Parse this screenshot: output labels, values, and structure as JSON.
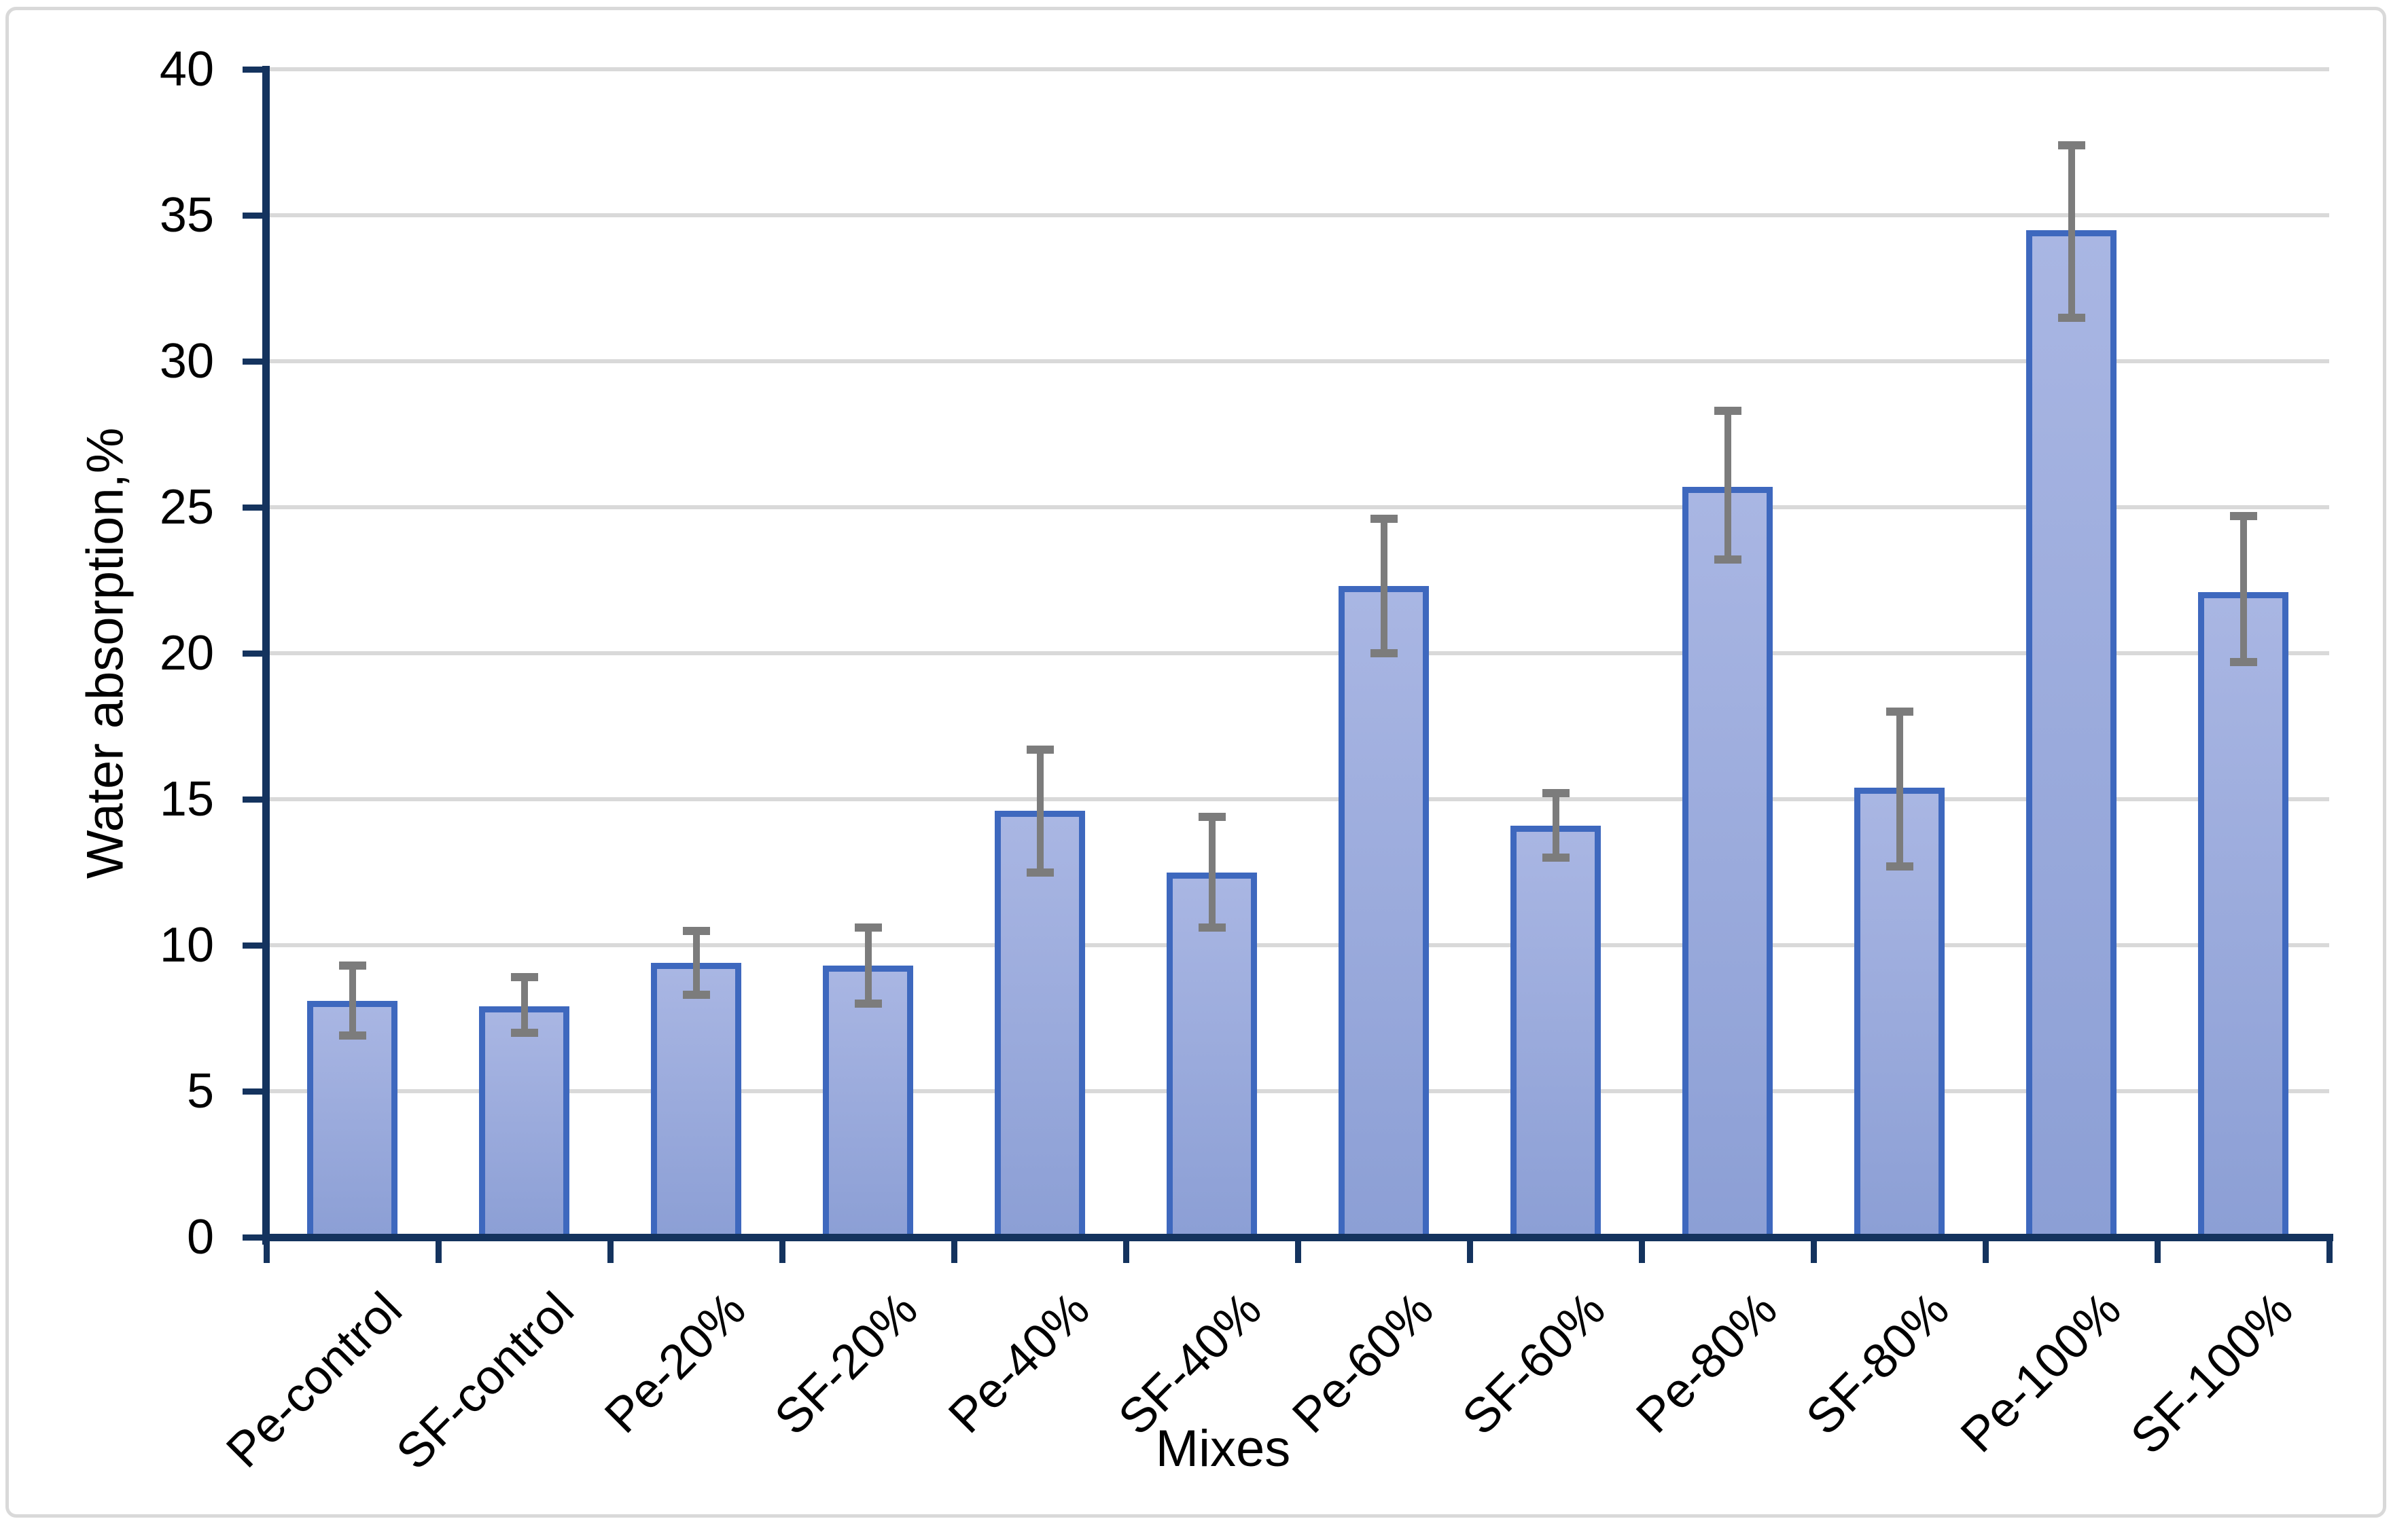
{
  "chart_data": {
    "type": "bar",
    "title": "",
    "xlabel": "Mixes",
    "ylabel": "Water absorption,%",
    "categories": [
      "Pe-control",
      "SF-control",
      "Pe-20%",
      "SF-20%",
      "Pe-40%",
      "SF-40%",
      "Pe-60%",
      "SF-60%",
      "Pe-80%",
      "SF-80%",
      "Pe-100%",
      "SF-100%"
    ],
    "values": [
      8.1,
      7.9,
      9.4,
      9.3,
      14.6,
      12.5,
      22.3,
      14.1,
      25.7,
      15.4,
      34.5,
      22.1
    ],
    "error_upper": [
      9.3,
      8.9,
      10.5,
      10.6,
      16.7,
      14.4,
      24.6,
      15.2,
      28.3,
      18.0,
      37.4,
      24.7
    ],
    "error_lower": [
      6.9,
      7.0,
      8.3,
      8.0,
      12.5,
      10.6,
      20.0,
      13.0,
      23.2,
      12.7,
      31.5,
      19.7
    ],
    "ylim": [
      0,
      40
    ],
    "yticks": [
      0,
      5,
      10,
      15,
      20,
      25,
      30,
      35,
      40
    ],
    "grid": "horizontal-major",
    "legend_position": "none"
  },
  "colors": {
    "bar_fill_top": "#a9b6e3",
    "bar_fill_bottom": "#8c9fd5",
    "bar_border": "#3e68be",
    "error_bar": "#7c7c7c",
    "axis_line": "#14335e",
    "gridline": "#d9d9d9",
    "chart_border": "#d9d9d9",
    "text": "#000000",
    "background": "#ffffff"
  }
}
